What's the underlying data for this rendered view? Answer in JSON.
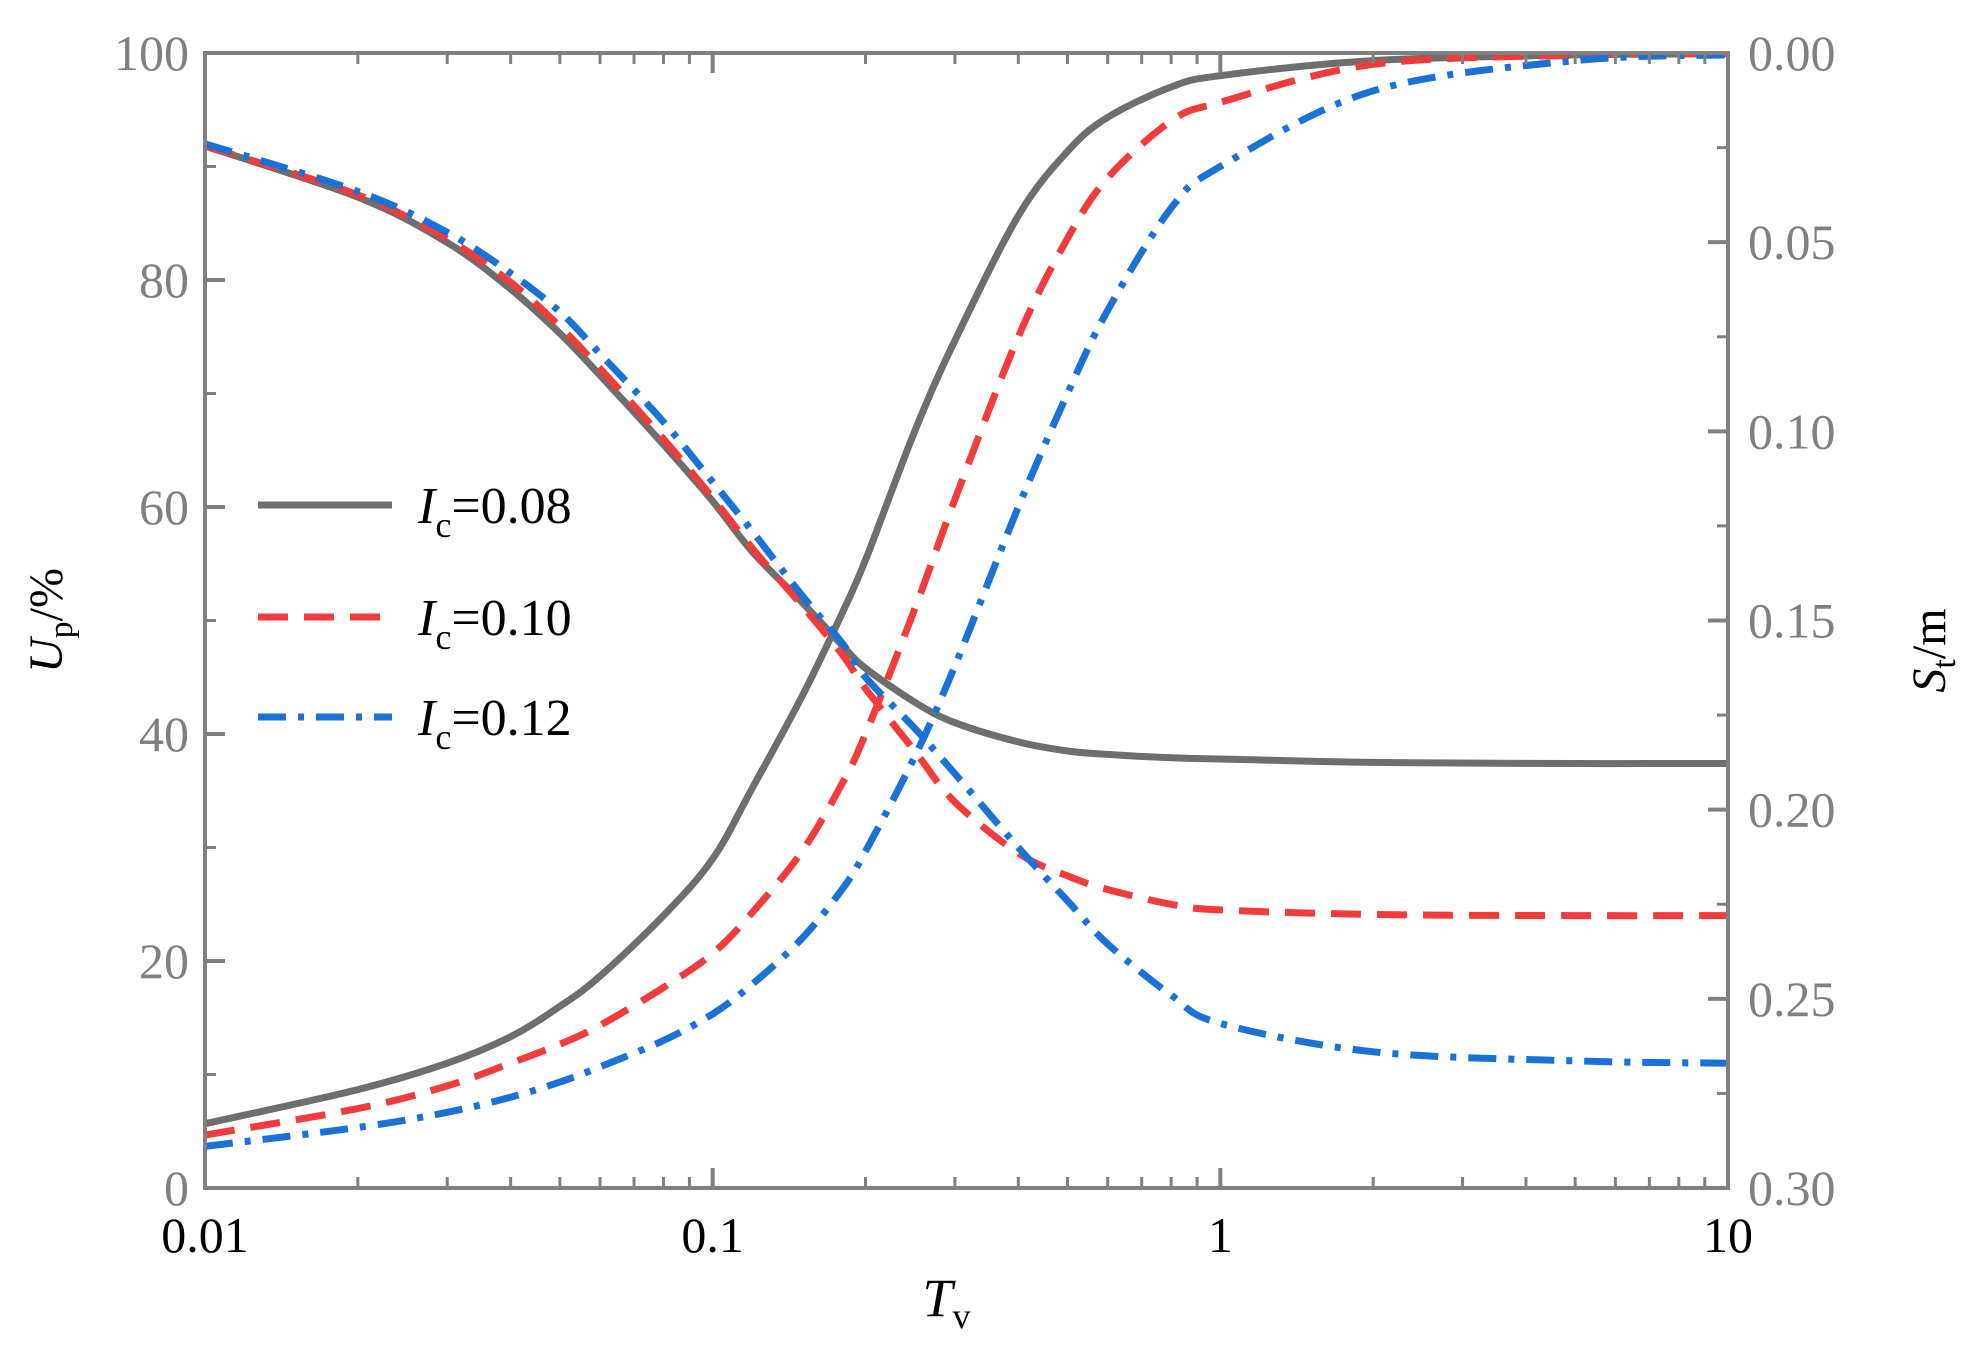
{
  "chart_data": {
    "type": "line",
    "xscale": "log",
    "xlim": [
      0.01,
      10
    ],
    "ylim_left": [
      0,
      100
    ],
    "ylim_right": [
      0.3,
      0.0
    ],
    "right_axis_inverted": true,
    "grid": false,
    "legend_position": "center-left",
    "x_ticks": [
      "0.01",
      "0.1",
      "1",
      "10"
    ],
    "y_left_ticks": [
      "0",
      "20",
      "40",
      "60",
      "80",
      "100"
    ],
    "y_right_ticks": [
      "0.30",
      "0.25",
      "0.20",
      "0.15",
      "0.10",
      "0.05",
      "0.00"
    ],
    "x_title": {
      "main": "T",
      "sub": "v"
    },
    "y_left_title": {
      "main": "U",
      "sub": "p",
      "rest": "/%"
    },
    "y_right_title": {
      "main": "S",
      "sub": "t",
      "rest": "/m"
    },
    "colors": {
      "axis": "#808080",
      "ic008": "#6e6e6e",
      "ic010": "#f23c3c",
      "ic012": "#1a72d9"
    },
    "series": [
      {
        "label_main": "I",
        "label_sub": "c",
        "label_rest": "=0.08",
        "color": "#6e6e6e",
        "dash": "solid",
        "up": {
          "x": [
            0.01,
            0.02,
            0.03,
            0.04,
            0.05,
            0.06,
            0.08,
            0.1,
            0.12,
            0.15,
            0.18,
            0.2,
            0.25,
            0.3,
            0.4,
            0.5,
            0.6,
            0.8,
            1,
            2,
            5,
            10
          ],
          "y": [
            91.8,
            87.3,
            83.3,
            79.2,
            75.3,
            71.6,
            65.5,
            60.5,
            56.0,
            51.6,
            47.8,
            45.8,
            42.8,
            41.0,
            39.3,
            38.5,
            38.2,
            37.9,
            37.8,
            37.5,
            37.4,
            37.4
          ]
        },
        "st": {
          "x": [
            0.01,
            0.02,
            0.03,
            0.04,
            0.05,
            0.06,
            0.08,
            0.1,
            0.12,
            0.15,
            0.18,
            0.2,
            0.25,
            0.3,
            0.4,
            0.5,
            0.6,
            0.8,
            1,
            2,
            5,
            10
          ],
          "y": [
            0.283,
            0.274,
            0.267,
            0.26,
            0.252,
            0.244,
            0.228,
            0.213,
            0.194,
            0.17,
            0.148,
            0.134,
            0.1,
            0.076,
            0.043,
            0.026,
            0.017,
            0.009,
            0.006,
            0.002,
            0.0005,
            0.0002
          ]
        }
      },
      {
        "label_main": "I",
        "label_sub": "c",
        "label_rest": "=0.10",
        "color": "#f23c3c",
        "dash": "dashed",
        "up": {
          "x": [
            0.01,
            0.02,
            0.03,
            0.04,
            0.05,
            0.06,
            0.08,
            0.1,
            0.12,
            0.15,
            0.18,
            0.2,
            0.25,
            0.3,
            0.4,
            0.5,
            0.6,
            0.8,
            1,
            2,
            5,
            10
          ],
          "y": [
            91.8,
            87.5,
            83.6,
            79.8,
            75.9,
            72.2,
            66.0,
            60.8,
            56.3,
            51.3,
            47.0,
            44.0,
            38.5,
            34.0,
            29.5,
            27.5,
            26.3,
            25.0,
            24.5,
            24.1,
            24.0,
            24.0
          ]
        },
        "st": {
          "x": [
            0.01,
            0.02,
            0.03,
            0.04,
            0.05,
            0.06,
            0.08,
            0.1,
            0.12,
            0.15,
            0.18,
            0.2,
            0.25,
            0.3,
            0.4,
            0.5,
            0.6,
            0.8,
            1,
            2,
            5,
            10
          ],
          "y": [
            0.286,
            0.279,
            0.273,
            0.267,
            0.262,
            0.257,
            0.247,
            0.238,
            0.227,
            0.211,
            0.193,
            0.18,
            0.147,
            0.118,
            0.075,
            0.049,
            0.033,
            0.018,
            0.013,
            0.003,
            0.0006,
            0.0002
          ]
        }
      },
      {
        "label_main": "I",
        "label_sub": "c",
        "label_rest": "=0.12",
        "color": "#1a72d9",
        "dash": "dashdot",
        "up": {
          "x": [
            0.01,
            0.02,
            0.03,
            0.04,
            0.05,
            0.06,
            0.08,
            0.1,
            0.12,
            0.15,
            0.18,
            0.2,
            0.25,
            0.3,
            0.4,
            0.5,
            0.6,
            0.8,
            1,
            2,
            5,
            10
          ],
          "y": [
            92.0,
            87.8,
            84.2,
            80.6,
            77.2,
            73.5,
            67.5,
            62.2,
            57.8,
            52.2,
            48.0,
            45.0,
            40.5,
            36.5,
            30.0,
            25.3,
            21.5,
            17.0,
            14.5,
            12.0,
            11.2,
            11.0
          ]
        },
        "st": {
          "x": [
            0.01,
            0.02,
            0.03,
            0.04,
            0.05,
            0.06,
            0.08,
            0.1,
            0.12,
            0.15,
            0.18,
            0.2,
            0.25,
            0.3,
            0.4,
            0.5,
            0.6,
            0.8,
            1,
            2,
            5,
            10
          ],
          "y": [
            0.289,
            0.284,
            0.28,
            0.276,
            0.272,
            0.268,
            0.261,
            0.254,
            0.246,
            0.234,
            0.221,
            0.211,
            0.186,
            0.162,
            0.12,
            0.09,
            0.068,
            0.041,
            0.03,
            0.01,
            0.002,
            0.0005
          ]
        }
      }
    ]
  }
}
